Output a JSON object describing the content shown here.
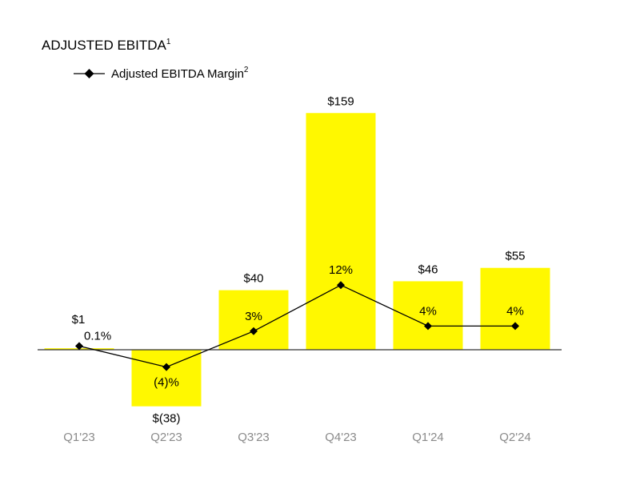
{
  "chart_data": {
    "type": "bar",
    "title": "ADJUSTED EBITDA",
    "title_superscript": "1",
    "categories": [
      "Q1'23",
      "Q2'23",
      "Q3'23",
      "Q4'23",
      "Q1'24",
      "Q2'24"
    ],
    "series": [
      {
        "type": "bar",
        "values": [
          1,
          -38,
          40,
          159,
          46,
          55
        ],
        "labels": [
          "$1",
          "$(38)",
          "$40",
          "$159",
          "$46",
          "$55"
        ],
        "color": "#FFF800"
      },
      {
        "type": "line",
        "name": "Adjusted EBITDA Margin",
        "name_superscript": "2",
        "values": [
          0.1,
          -4,
          3,
          12,
          4,
          4
        ],
        "labels": [
          "0.1%",
          "(4)%",
          "3%",
          "12%",
          "4%",
          "4%"
        ],
        "color": "#000000",
        "marker": "diamond"
      }
    ],
    "legend": "top-left",
    "grid": false
  }
}
